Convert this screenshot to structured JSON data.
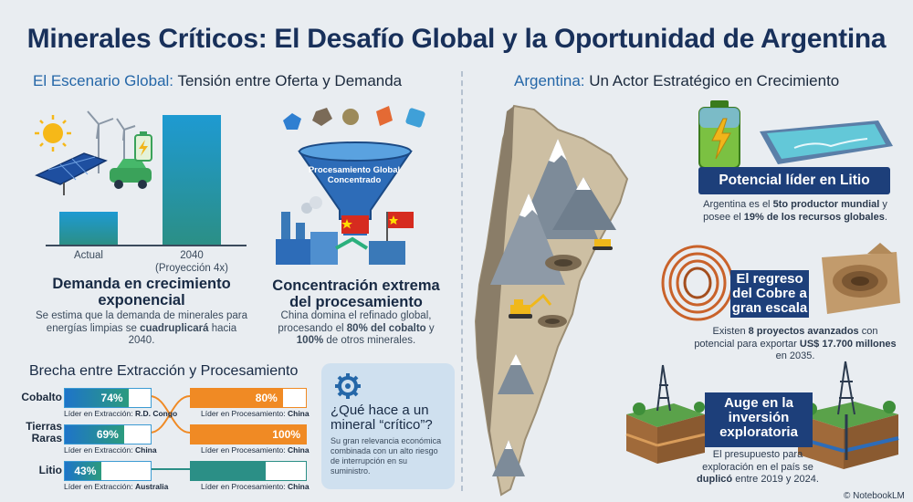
{
  "title": "Minerales Críticos: El Desafío Global y la Oportunidad de Argentina",
  "left_header": {
    "accent": "El Escenario Global:",
    "rest": "Tensión entre Oferta y Demanda"
  },
  "right_header": {
    "accent": "Argentina:",
    "rest": "Un Actor Estratégico en Crecimiento"
  },
  "demand_chart": {
    "categories": [
      "Actual",
      "2040"
    ],
    "sublabel": "(Proyección 4x)",
    "values": [
      1,
      4
    ]
  },
  "demand": {
    "title": "Demanda en crecimiento exponencial",
    "desc_a": "Se estima que la demanda de minerales para energías limpias se",
    "desc_bold": "cuadruplicará",
    "desc_b": "hacia 2040."
  },
  "funnel_label": "Procesamiento Global Concentrado",
  "processing": {
    "title": "Concentración extrema del procesamiento",
    "desc_a": "China domina el refinado global, procesando el",
    "bold1": "80% del cobalto",
    "desc_b": "y",
    "bold2": "100%",
    "desc_c": "de otros minerales."
  },
  "gap": {
    "title": "Brecha entre Extracción y Procesamiento",
    "rows": [
      {
        "mineral": "Cobalto",
        "extract_pct": "74%",
        "extract_value": 74,
        "extract_leader_label": "Líder en Extracción:",
        "extract_leader": "R.D. Congo",
        "process_pct": "80%",
        "process_value": 80,
        "process_leader_label": "Líder en Procesamiento:",
        "process_leader": "China",
        "process_color": "#f08a24"
      },
      {
        "mineral": "Tierras Raras",
        "extract_pct": "69%",
        "extract_value": 69,
        "extract_leader_label": "Líder en Extracción:",
        "extract_leader": "China",
        "process_pct": "100%",
        "process_value": 100,
        "process_leader_label": "Líder en Procesamiento:",
        "process_leader": "China",
        "process_color": "#f08a24"
      },
      {
        "mineral": "Litio",
        "extract_pct": "43%",
        "extract_value": 43,
        "extract_leader_label": "Líder en Extracción:",
        "extract_leader": "Australia",
        "process_pct": "",
        "process_value": 65,
        "process_leader_label": "Líder en Procesamiento:",
        "process_leader": "China",
        "process_color": "#2b8f86"
      }
    ]
  },
  "critical": {
    "title": "¿Qué hace a un mineral “crítico”?",
    "desc": "Su gran relevancia económica combinada con un alto riesgo de interrupción en su suministro."
  },
  "lithium": {
    "banner": "Potencial líder en Litio",
    "d1": "Argentina es el",
    "b1": "5to productor mundial",
    "d2": "y posee el",
    "b2": "19% de los recursos globales",
    "d3": "."
  },
  "copper": {
    "banner": "El regreso del Cobre a gran escala",
    "d1": "Existen",
    "b1": "8 proyectos avanzados",
    "d2": "con potencial para exportar",
    "b2": "US$ 17.700 millones",
    "d3": "en 2035."
  },
  "exploration": {
    "banner": "Auge en la inversión exploratoria",
    "d1": "El presupuesto para exploración en el país se",
    "b1": "duplicó",
    "d2": "entre 2019 y 2024."
  },
  "footer": "© NotebookLM",
  "colors": {
    "accent": "#2567a8",
    "navy": "#1d3f7a",
    "orange": "#f08a24",
    "teal": "#2b8f86",
    "chinaRed": "#d62b1f"
  }
}
